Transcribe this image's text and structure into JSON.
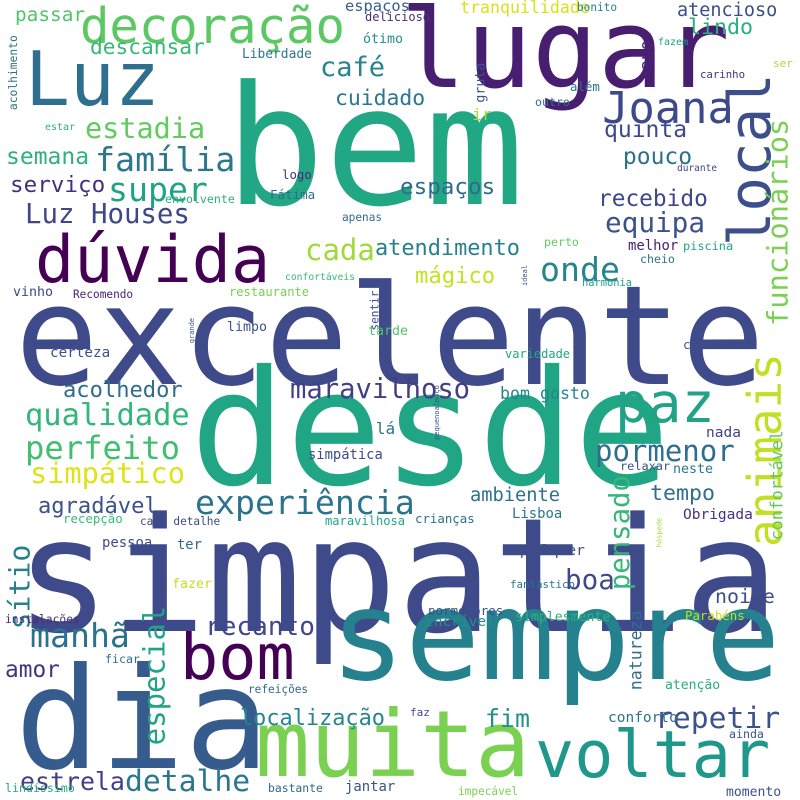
{
  "words": [
    {
      "text": "bem",
      "color": "#22a785"
    },
    {
      "text": "excelente",
      "color": "#3f4a8a"
    },
    {
      "text": "simpatia",
      "color": "#3f4a8a"
    },
    {
      "text": "desde",
      "color": "#21a685"
    },
    {
      "text": "sempre",
      "color": "#26818e"
    },
    {
      "text": "dia",
      "color": "#365c8d"
    },
    {
      "text": "lugar",
      "color": "#481f70"
    },
    {
      "text": "Luz",
      "color": "#2e6f8e"
    },
    {
      "text": "local",
      "color": "#3c4f8a"
    },
    {
      "text": "muita",
      "color": "#7ad151"
    },
    {
      "text": "dúvida",
      "color": "#440154"
    },
    {
      "text": "bom",
      "color": "#440154"
    },
    {
      "text": "voltar",
      "color": "#1f988b"
    },
    {
      "text": "paz",
      "color": "#20a386"
    },
    {
      "text": "decoração",
      "color": "#5cc863"
    },
    {
      "text": "animais",
      "color": "#c2df23"
    },
    {
      "text": "experiência",
      "color": "#2c738e"
    },
    {
      "text": "sítio",
      "color": "#27808e"
    },
    {
      "text": "funcionários",
      "color": "#7ad151"
    },
    {
      "text": "onde",
      "color": "#25848e"
    },
    {
      "text": "Joana",
      "color": "#3e4989"
    },
    {
      "text": "família",
      "color": "#2a778e"
    },
    {
      "text": "super",
      "color": "#1fa287"
    },
    {
      "text": "café",
      "color": "#25848e"
    },
    {
      "text": "cuidado",
      "color": "#2a768e"
    },
    {
      "text": "estadia",
      "color": "#62cb5f"
    },
    {
      "text": "Luz Houses",
      "color": "#3f4788"
    },
    {
      "text": "equipa",
      "color": "#3b528b"
    },
    {
      "text": "cada",
      "color": "#a0da39"
    },
    {
      "text": "atendimento",
      "color": "#26818e"
    },
    {
      "text": "mágico",
      "color": "#c8e020"
    },
    {
      "text": "maravilhoso",
      "color": "#433e85"
    },
    {
      "text": "qualidade",
      "color": "#32b67a"
    },
    {
      "text": "perfeito",
      "color": "#42be71"
    },
    {
      "text": "simpático",
      "color": "#dde318"
    },
    {
      "text": "pormenor",
      "color": "#2e6e8e"
    },
    {
      "text": "tempo",
      "color": "#2e6f8e"
    },
    {
      "text": "manhã",
      "color": "#2c728e"
    },
    {
      "text": "especial",
      "color": "#20a386"
    },
    {
      "text": "repetir",
      "color": "#3b528b"
    },
    {
      "text": "pensado",
      "color": "#35b779"
    },
    {
      "text": "boa",
      "color": "#3e4989"
    },
    {
      "text": "noite",
      "color": "#3d4e8a"
    },
    {
      "text": "recanto",
      "color": "#3f4889"
    },
    {
      "text": "detalhe",
      "color": "#2a768e"
    },
    {
      "text": "estrela",
      "color": "#433e85"
    },
    {
      "text": "localização",
      "color": "#24868e"
    },
    {
      "text": "fim",
      "color": "#21918c"
    },
    {
      "text": "ambiente",
      "color": "#2d708e"
    },
    {
      "text": "agradável",
      "color": "#3b528b"
    },
    {
      "text": "acolhedor",
      "color": "#2f6c8e"
    },
    {
      "text": "bom gosto",
      "color": "#25848e"
    },
    {
      "text": "espaços",
      "color": "#2f6b8e"
    },
    {
      "text": "recebido",
      "color": "#3f4788"
    },
    {
      "text": "quinta",
      "color": "#3e4989"
    },
    {
      "text": "pouco",
      "color": "#2d708e"
    },
    {
      "text": "lindo",
      "color": "#29af7f"
    },
    {
      "text": "atencioso",
      "color": "#3d4d8a"
    },
    {
      "text": "descansar",
      "color": "#37b878"
    },
    {
      "text": "semana",
      "color": "#2db27d"
    },
    {
      "text": "serviço",
      "color": "#46307e"
    },
    {
      "text": "amor",
      "color": "#46337f"
    },
    {
      "text": "natureza",
      "color": "#2e6e8e"
    },
    {
      "text": "qualquer",
      "color": "#3e4c8a"
    },
    {
      "text": "conforto",
      "color": "#2c728e"
    },
    {
      "text": "confortável",
      "color": "#5ec962"
    },
    {
      "text": "passar",
      "color": "#52c569"
    },
    {
      "text": "tranquilidade",
      "color": "#d8e219"
    },
    {
      "text": "acolhimento",
      "color": "#2d708e"
    },
    {
      "text": "espaços",
      "color": "#365d8d"
    },
    {
      "text": "delicioso",
      "color": "#472f7d"
    },
    {
      "text": "bonito",
      "color": "#26828e"
    },
    {
      "text": "ótimo",
      "color": "#21918c"
    },
    {
      "text": "Liberdade",
      "color": "#2a778e"
    },
    {
      "text": "gruta",
      "color": "#3b528b"
    },
    {
      "text": "além",
      "color": "#2c728e"
    },
    {
      "text": "ano",
      "color": "#482576"
    },
    {
      "text": "fazem",
      "color": "#1f9e89"
    },
    {
      "text": "carinho",
      "color": "#46337f"
    },
    {
      "text": "ser",
      "color": "#a5db36"
    },
    {
      "text": "outro",
      "color": "#2c728e"
    },
    {
      "text": "ir",
      "color": "#a2da37"
    },
    {
      "text": "estar",
      "color": "#2db27d"
    },
    {
      "text": "logo",
      "color": "#472c7a"
    },
    {
      "text": "Fátima",
      "color": "#2d708e"
    },
    {
      "text": "envolvente",
      "color": "#2db27d"
    },
    {
      "text": "durante",
      "color": "#3e4989"
    },
    {
      "text": "apenas",
      "color": "#2f6c8e"
    },
    {
      "text": "perto",
      "color": "#63cb5f"
    },
    {
      "text": "piscina",
      "color": "#22a785"
    },
    {
      "text": "melhor",
      "color": "#482173"
    },
    {
      "text": "cheio",
      "color": "#2b748e"
    },
    {
      "text": "ideal",
      "color": "#3b528b"
    },
    {
      "text": "harmonia",
      "color": "#1fa188"
    },
    {
      "text": "confortáveis",
      "color": "#3aba76"
    },
    {
      "text": "vinho",
      "color": "#3e4989"
    },
    {
      "text": "Recomendo",
      "color": "#482475"
    },
    {
      "text": "restaurante",
      "color": "#75d054"
    },
    {
      "text": "sentir",
      "color": "#3b528b"
    },
    {
      "text": "tarde",
      "color": "#52c569"
    },
    {
      "text": "limpo",
      "color": "#3b528b"
    },
    {
      "text": "grande",
      "color": "#3b528b"
    },
    {
      "text": "certeza",
      "color": "#3d4e8a"
    },
    {
      "text": "variedade",
      "color": "#21a685"
    },
    {
      "text": "cama",
      "color": "#3b528b"
    },
    {
      "text": "pequenoalmoço",
      "color": "#3b528b"
    },
    {
      "text": "lá",
      "color": "#2c728e"
    },
    {
      "text": "nada",
      "color": "#404387"
    },
    {
      "text": "simpática",
      "color": "#3e4c8a"
    },
    {
      "text": "relaxar",
      "color": "#3b528b"
    },
    {
      "text": "neste",
      "color": "#2a778e"
    },
    {
      "text": "recepção",
      "color": "#3aba76"
    },
    {
      "text": "cada detalhe",
      "color": "#3e4a89"
    },
    {
      "text": "maravilhosa",
      "color": "#21a685"
    },
    {
      "text": "crianças",
      "color": "#2d708e"
    },
    {
      "text": "Lisboa",
      "color": "#2a788e"
    },
    {
      "text": "Obrigada",
      "color": "#463480"
    },
    {
      "text": "hóspede",
      "color": "#a2da37"
    },
    {
      "text": "pessoa",
      "color": "#3e4989"
    },
    {
      "text": "ter",
      "color": "#31688e"
    },
    {
      "text": "fazer",
      "color": "#c5e021"
    },
    {
      "text": "fantástico",
      "color": "#2c728e"
    },
    {
      "text": "instalações",
      "color": "#472d7b"
    },
    {
      "text": "pormenores",
      "color": "#3b528b"
    },
    {
      "text": "incrível",
      "color": "#21908d"
    },
    {
      "text": "simplesmente",
      "color": "#2db27d"
    },
    {
      "text": "Parabéns",
      "color": "#c0df25"
    },
    {
      "text": "ficar",
      "color": "#2d708e"
    },
    {
      "text": "refeições",
      "color": "#31688e"
    },
    {
      "text": "faz",
      "color": "#3e4989"
    },
    {
      "text": "atenção",
      "color": "#26ad81"
    },
    {
      "text": "ainda",
      "color": "#3b528b"
    },
    {
      "text": "lindíssimo",
      "color": "#25ab82"
    },
    {
      "text": "bastante",
      "color": "#31688e"
    },
    {
      "text": "jantar",
      "color": "#3b528b"
    },
    {
      "text": "impecável",
      "color": "#7ad151"
    },
    {
      "text": "momento",
      "color": "#3b528b"
    }
  ]
}
